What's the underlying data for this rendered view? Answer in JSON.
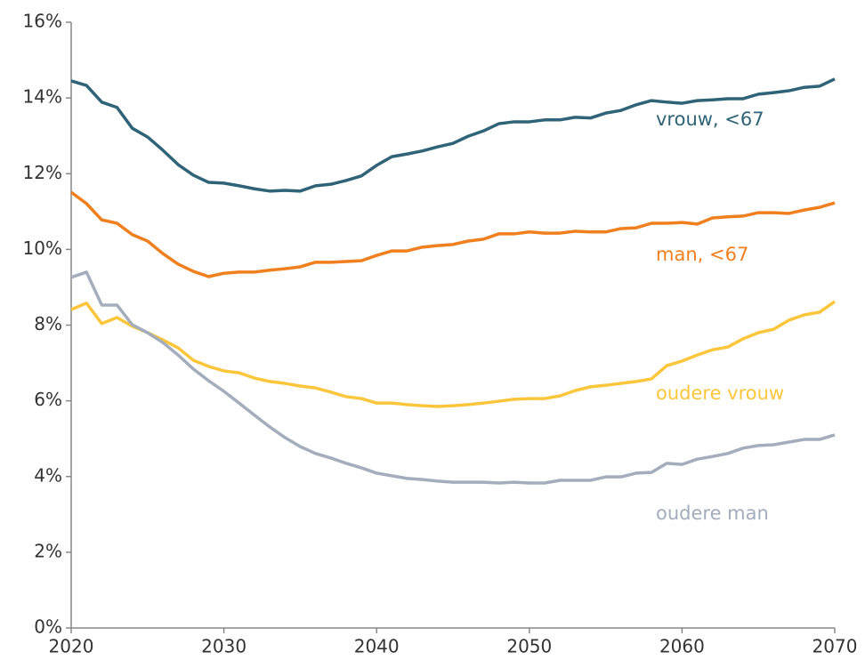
{
  "chart_data": {
    "type": "line",
    "x": [
      2020,
      2021,
      2022,
      2023,
      2024,
      2025,
      2026,
      2027,
      2028,
      2029,
      2030,
      2031,
      2032,
      2033,
      2034,
      2035,
      2036,
      2037,
      2038,
      2039,
      2040,
      2041,
      2042,
      2043,
      2044,
      2045,
      2046,
      2047,
      2048,
      2049,
      2050,
      2051,
      2052,
      2053,
      2054,
      2055,
      2056,
      2057,
      2058,
      2059,
      2060,
      2061,
      2062,
      2063,
      2064,
      2065,
      2066,
      2067,
      2068,
      2069,
      2070
    ],
    "series": [
      {
        "name": "vrouw, <67",
        "color": "#2e6378",
        "values": [
          14.45,
          14.33,
          13.89,
          13.75,
          13.2,
          12.97,
          12.62,
          12.24,
          11.96,
          11.77,
          11.75,
          11.68,
          11.6,
          11.54,
          11.56,
          11.54,
          11.68,
          11.72,
          11.82,
          11.94,
          12.22,
          12.45,
          12.52,
          12.6,
          12.71,
          12.8,
          12.99,
          13.13,
          13.32,
          13.37,
          13.37,
          13.42,
          13.42,
          13.49,
          13.47,
          13.6,
          13.67,
          13.82,
          13.93,
          13.89,
          13.86,
          13.93,
          13.95,
          13.98,
          13.98,
          14.1,
          14.14,
          14.19,
          14.28,
          14.31,
          14.5
        ]
      },
      {
        "name": "man, <67",
        "color": "#f07f1e",
        "values": [
          11.51,
          11.21,
          10.78,
          10.69,
          10.39,
          10.22,
          9.89,
          9.61,
          9.42,
          9.28,
          9.37,
          9.4,
          9.4,
          9.45,
          9.49,
          9.54,
          9.66,
          9.66,
          9.68,
          9.7,
          9.84,
          9.96,
          9.96,
          10.06,
          10.1,
          10.13,
          10.22,
          10.27,
          10.41,
          10.41,
          10.46,
          10.43,
          10.43,
          10.48,
          10.46,
          10.46,
          10.55,
          10.57,
          10.69,
          10.69,
          10.71,
          10.67,
          10.83,
          10.86,
          10.88,
          10.97,
          10.97,
          10.95,
          11.04,
          11.11,
          11.23
        ]
      },
      {
        "name": "oudere vrouw",
        "color": "#fcc63c",
        "values": [
          8.41,
          8.58,
          8.04,
          8.2,
          7.97,
          7.8,
          7.61,
          7.4,
          7.07,
          6.91,
          6.79,
          6.74,
          6.6,
          6.51,
          6.46,
          6.39,
          6.34,
          6.23,
          6.11,
          6.06,
          5.94,
          5.94,
          5.9,
          5.87,
          5.85,
          5.87,
          5.9,
          5.94,
          5.99,
          6.04,
          6.06,
          6.06,
          6.13,
          6.27,
          6.37,
          6.41,
          6.46,
          6.51,
          6.58,
          6.93,
          7.05,
          7.21,
          7.35,
          7.42,
          7.64,
          7.8,
          7.89,
          8.13,
          8.27,
          8.34,
          8.62
        ]
      },
      {
        "name": "oudere man",
        "color": "#a3adbc",
        "values": [
          9.26,
          9.4,
          8.53,
          8.53,
          8.01,
          7.8,
          7.54,
          7.21,
          6.84,
          6.53,
          6.25,
          5.94,
          5.62,
          5.31,
          5.03,
          4.79,
          4.61,
          4.49,
          4.35,
          4.23,
          4.09,
          4.02,
          3.95,
          3.92,
          3.88,
          3.85,
          3.85,
          3.85,
          3.83,
          3.85,
          3.83,
          3.83,
          3.9,
          3.9,
          3.9,
          3.99,
          3.99,
          4.09,
          4.11,
          4.35,
          4.32,
          4.46,
          4.53,
          4.61,
          4.75,
          4.82,
          4.84,
          4.91,
          4.98,
          4.98,
          5.1
        ]
      }
    ],
    "xlim": [
      2020,
      2070
    ],
    "xticks": [
      2020,
      2030,
      2040,
      2050,
      2060,
      2070
    ],
    "ylim": [
      0,
      16
    ],
    "yticks": [
      {
        "value": 0,
        "label": "0%"
      },
      {
        "value": 2,
        "label": "2%"
      },
      {
        "value": 4,
        "label": "4%"
      },
      {
        "value": 6,
        "label": "6%"
      },
      {
        "value": 8,
        "label": "8%"
      },
      {
        "value": 10,
        "label": "10%"
      },
      {
        "value": 12,
        "label": "12%"
      },
      {
        "value": 14,
        "label": "14%"
      },
      {
        "value": 16,
        "label": "16%"
      }
    ]
  }
}
